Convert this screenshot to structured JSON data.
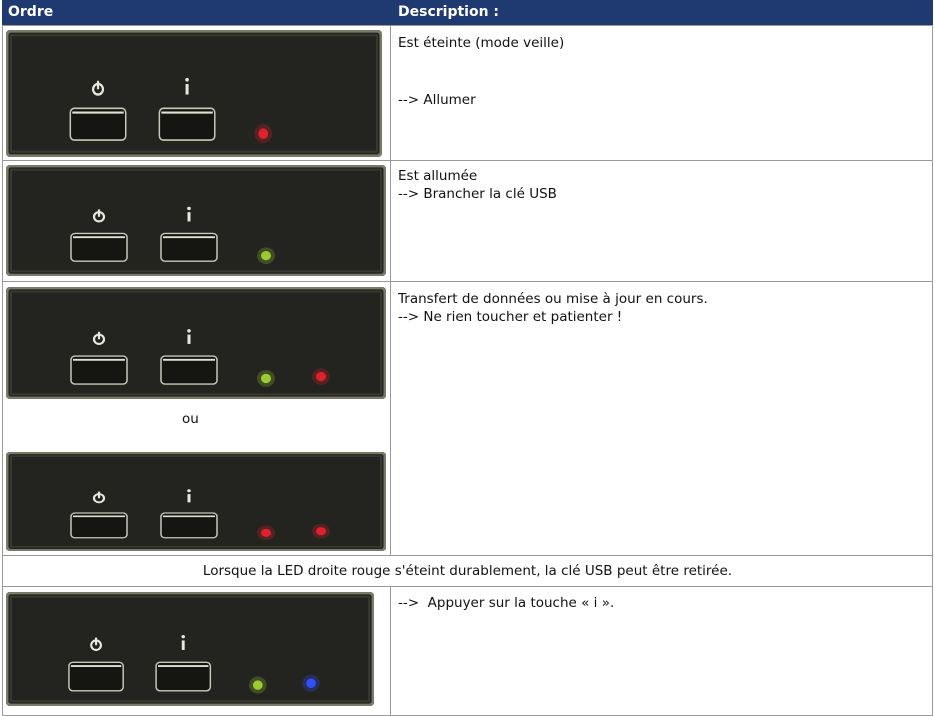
{
  "table": {
    "header": [
      "Ordre",
      "Description :"
    ],
    "rows": [
      {
        "description": [
          "Est éteinte (mode veille)",
          "--> Allumer"
        ]
      },
      {
        "description": [
          "Est allumée",
          "--> Brancher la clé USB"
        ]
      },
      {
        "separator": "ou",
        "description": [
          "Transfert de données ou mise à jour en cours.",
          "--> Ne rien toucher et patienter !"
        ]
      },
      {
        "note": "Lorsque la LED droite rouge s'éteint durablement, la clé USB peut être retirée."
      },
      {
        "description": [
          "-->  Appuyer sur la touche « i »."
        ]
      }
    ]
  }
}
